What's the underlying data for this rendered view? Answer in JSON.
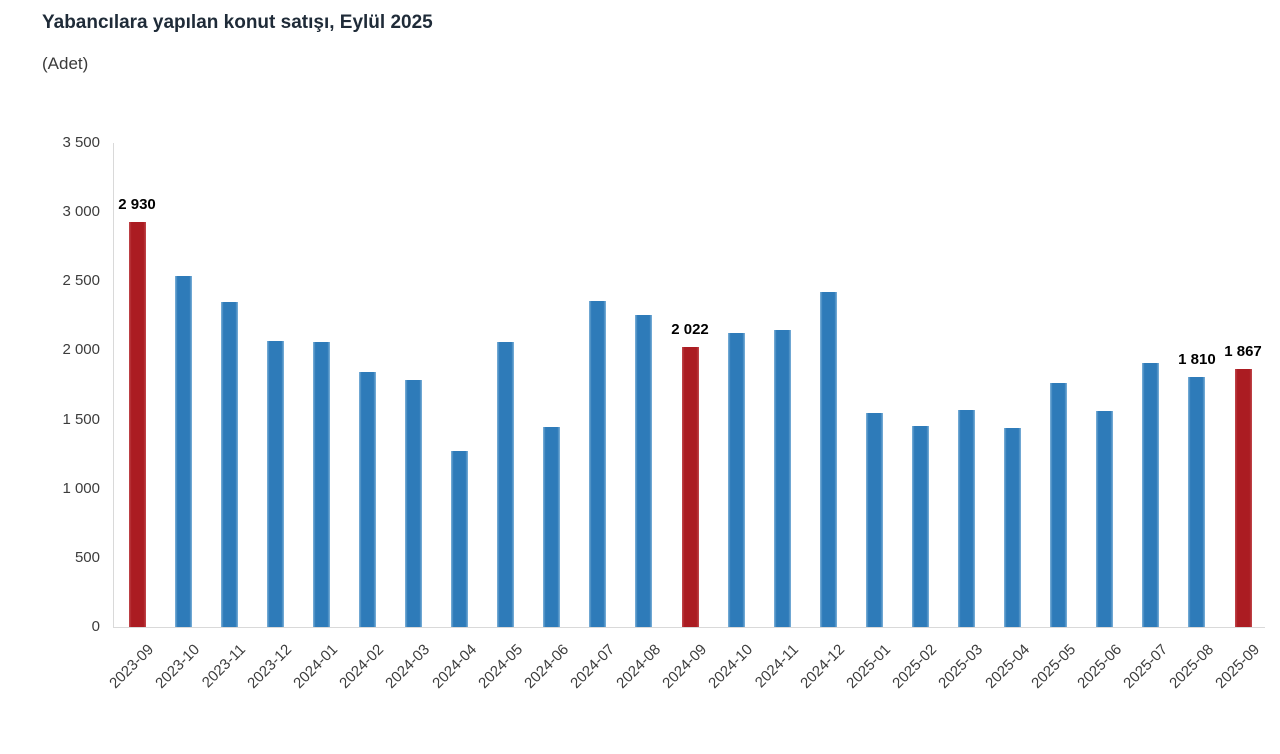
{
  "header": {
    "title": "Yabancılara yapılan konut satışı, Eylül 2025",
    "subtitle": "(Adet)"
  },
  "colors": {
    "bar_blue": "#2e7bb9",
    "bar_red": "#ab1c22",
    "axis_line": "#d9d9d9",
    "tick_text": "#3c3c3c",
    "title_text": "#1f2b38",
    "data_label_text": "#000000"
  },
  "chart_data": {
    "type": "bar",
    "title": "Yabancılara yapılan konut satışı, Eylül 2025",
    "unit_label": "(Adet)",
    "xlabel": "",
    "ylabel": "Adet",
    "ylim": [
      0,
      3500
    ],
    "ytick_step": 500,
    "ytick_labels": [
      "3 500",
      "3 000",
      "2 500",
      "2 000",
      "1 500",
      "1 000",
      "500",
      "0"
    ],
    "grid": false,
    "legend": false,
    "categories": [
      "2023-09",
      "2023-10",
      "2023-11",
      "2023-12",
      "2024-01",
      "2024-02",
      "2024-03",
      "2024-04",
      "2024-05",
      "2024-06",
      "2024-07",
      "2024-08",
      "2024-09",
      "2024-10",
      "2024-11",
      "2024-12",
      "2025-01",
      "2025-02",
      "2025-03",
      "2025-04",
      "2025-05",
      "2025-06",
      "2025-07",
      "2025-08",
      "2025-09"
    ],
    "values": [
      2930,
      2540,
      2352,
      2068,
      2061,
      1843,
      1787,
      1273,
      2062,
      1445,
      2354,
      2257,
      2022,
      2125,
      2149,
      2420,
      1546,
      1457,
      1570,
      1442,
      1768,
      1563,
      1908,
      1810,
      1867
    ],
    "highlight_indices": [
      0,
      12,
      24
    ],
    "data_labels": [
      {
        "index": 0,
        "text": "2 930"
      },
      {
        "index": 12,
        "text": "2 022"
      },
      {
        "index": 23,
        "text": "1 810"
      },
      {
        "index": 24,
        "text": "1 867"
      }
    ]
  }
}
